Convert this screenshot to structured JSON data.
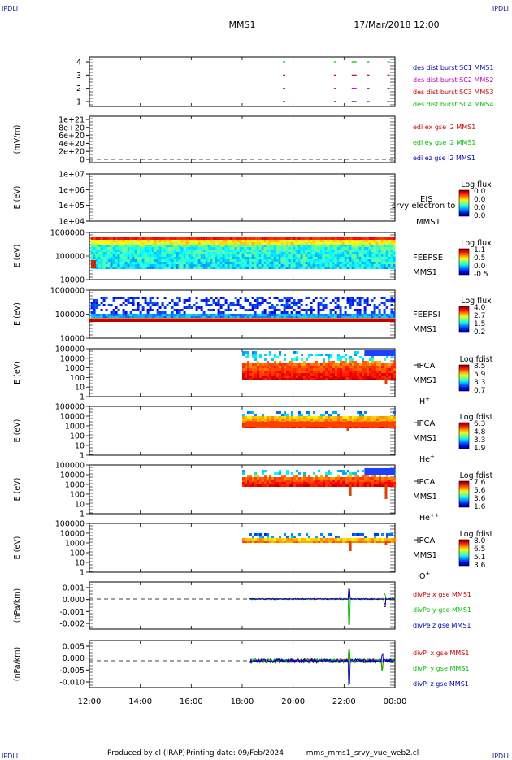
{
  "header": {
    "corner_label": "IPDLI",
    "spacecraft": "MMS1",
    "datetime": "17/Mar/2018 12:00"
  },
  "footer": {
    "produced_by": "Produced by cl (IRAP)",
    "printing_date": "Printing date: 09/Feb/2024",
    "plot_file": "mms_mms1_srvy_vue_web2.cl"
  },
  "time_axis": {
    "ticks": [
      "12:00",
      "14:00",
      "16:00",
      "18:00",
      "20:00",
      "22:00",
      "00:00"
    ],
    "start_hour": 12,
    "end_hour": 24
  },
  "colors": {
    "red": "#d00000",
    "green": "#00c000",
    "blue": "#0000c0",
    "magenta": "#c000c0",
    "axis": "#000000"
  },
  "chart_data": [
    {
      "panel": "des-dist-burst",
      "type": "scatter",
      "yticks": [
        "4",
        "3",
        "2",
        "1"
      ],
      "legend": [
        {
          "text": "des dist burst SC1 MMS1",
          "color": "#0000c0"
        },
        {
          "text": "des dist burst SC2 MMS2",
          "color": "#c000c0"
        },
        {
          "text": "des dist burst SC3 MMS3",
          "color": "#d00000"
        },
        {
          "text": "des dist burst SC4 MMS4",
          "color": "#00c000"
        }
      ],
      "segments_hours": [
        19.6,
        21.6,
        22.3,
        22.9,
        23.7
      ]
    },
    {
      "panel": "edi-e-gse",
      "type": "line",
      "ylabel": "(mV/m)",
      "yticks": [
        "1e+21",
        "8e+20",
        "6e+20",
        "4e+20",
        "2e+20",
        "0"
      ],
      "legend": [
        {
          "text": "edi ex gse l2 MMS1",
          "color": "#d00000"
        },
        {
          "text": "edi ey gse l2 MMS1",
          "color": "#00c000"
        },
        {
          "text": "edi ez gse l2 MMS1",
          "color": "#0000c0"
        }
      ]
    },
    {
      "panel": "eis",
      "type": "heatmap",
      "ylabel": "E (eV)",
      "yticks": [
        "1e+07",
        "1e+06",
        "1e+05",
        "1e+04"
      ],
      "labels": [
        "EIS",
        "srvy electron to",
        "MMS1"
      ],
      "colorbar": {
        "title": "Log flux",
        "ticks": [
          "0.0",
          "0.0",
          "0.0",
          "0.0"
        ]
      }
    },
    {
      "panel": "feeps-e",
      "type": "heatmap",
      "ylabel": "E (eV)",
      "yticks": [
        "1000000",
        "100000",
        "10000"
      ],
      "labels": [
        "FEEPSE",
        "MMS1"
      ],
      "colorbar": {
        "title": "Log flux",
        "ticks": [
          "1.1",
          "0.5",
          "0.0",
          "-0.5"
        ]
      }
    },
    {
      "panel": "feeps-i",
      "type": "heatmap",
      "ylabel": "E (eV)",
      "yticks": [
        "1000000",
        "100000",
        "10000"
      ],
      "labels": [
        "FEEPSI",
        "MMS1"
      ],
      "colorbar": {
        "title": "Log flux",
        "ticks": [
          "4.0",
          "2.7",
          "1.5",
          "0.2"
        ]
      }
    },
    {
      "panel": "hpca-h",
      "type": "heatmap",
      "ylabel": "E (eV)",
      "yticks": [
        "100000",
        "10000",
        "1000",
        "100",
        "10",
        "1"
      ],
      "labels": [
        "HPCA",
        "MMS1",
        "H+"
      ],
      "colorbar": {
        "title": "Log fdist",
        "ticks": [
          "8.5",
          "5.9",
          "3.3",
          "0.7"
        ]
      }
    },
    {
      "panel": "hpca-he",
      "type": "heatmap",
      "ylabel": "E (eV)",
      "yticks": [
        "100000",
        "10000",
        "1000",
        "100",
        "10",
        "1"
      ],
      "labels": [
        "HPCA",
        "MMS1",
        "He+"
      ],
      "colorbar": {
        "title": "Log fdist",
        "ticks": [
          "6.3",
          "4.8",
          "3.3",
          "1.9"
        ]
      }
    },
    {
      "panel": "hpca-hepp",
      "type": "heatmap",
      "ylabel": "E (eV)",
      "yticks": [
        "100000",
        "10000",
        "1000",
        "100",
        "10",
        "1"
      ],
      "labels": [
        "HPCA",
        "MMS1",
        "He++"
      ],
      "colorbar": {
        "title": "Log fdist",
        "ticks": [
          "7.6",
          "5.6",
          "3.6",
          "1.6"
        ]
      }
    },
    {
      "panel": "hpca-o",
      "type": "heatmap",
      "ylabel": "E (eV)",
      "yticks": [
        "100000",
        "10000",
        "1000",
        "100",
        "10",
        "1"
      ],
      "labels": [
        "HPCA",
        "MMS1",
        "O+"
      ],
      "colorbar": {
        "title": "Log fdist",
        "ticks": [
          "8.0",
          "6.5",
          "5.1",
          "3.6"
        ]
      }
    },
    {
      "panel": "divpe",
      "type": "line",
      "ylabel": "(nPa/km)",
      "yticks": [
        "0.001",
        "0.000",
        "-0.001",
        "-0.002"
      ],
      "legend": [
        {
          "text": "divPe x gse MMS1",
          "color": "#d00000"
        },
        {
          "text": "divPe y gse MMS1",
          "color": "#00c000"
        },
        {
          "text": "divPe z gse MMS1",
          "color": "#0000c0"
        }
      ]
    },
    {
      "panel": "divpi",
      "type": "line",
      "ylabel": "(nPa/km)",
      "yticks": [
        "0.005",
        "0.000",
        "-0.005",
        "-0.010"
      ],
      "legend": [
        {
          "text": "divPi x gse MMS1",
          "color": "#d00000"
        },
        {
          "text": "divPi y gse MMS1",
          "color": "#00c000"
        },
        {
          "text": "divPi z gse MMS1",
          "color": "#0000c0"
        }
      ]
    }
  ]
}
